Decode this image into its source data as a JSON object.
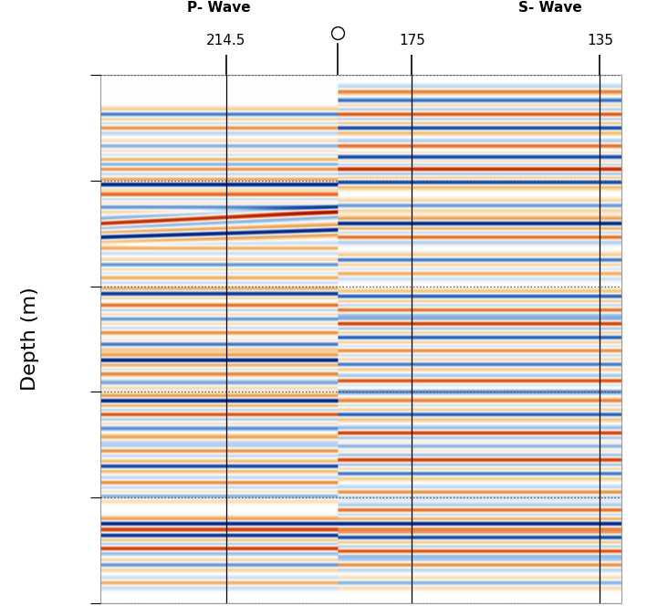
{
  "chart_data": {
    "type": "seismic",
    "ylabel": "Depth (m)",
    "xlim": [
      241.3,
      130.5
    ],
    "xticks": [
      214.5,
      175,
      135
    ],
    "ylim": [
      100,
      0
    ],
    "yticks": [
      0,
      20,
      40,
      60,
      80,
      100
    ],
    "tick_labels": "x",
    "grid": true,
    "boundary": 190.8,
    "panels": [
      {
        "name": "P- Wave",
        "xrange": [
          241.3,
          190.8
        ],
        "events": [
          {
            "depth": [
              7.4,
              7.4
            ],
            "amplitude": -0.6
          },
          {
            "depth": [
              10,
              10
            ],
            "amplitude": 0.5
          },
          {
            "depth": [
              13.4,
              13.4
            ],
            "amplitude": -0.4
          },
          {
            "depth": [
              16,
              16
            ],
            "amplitude": 0.4
          },
          {
            "depth": [
              17.8,
              17.8
            ],
            "amplitude": 0.5
          },
          {
            "depth": [
              20.7,
              20.7
            ],
            "amplitude": -1.0
          },
          {
            "depth": [
              22.6,
              22.6
            ],
            "amplitude": 0.6
          },
          {
            "depth": [
              25,
              25
            ],
            "amplitude": -0.5
          },
          {
            "depth": [
              28.1,
              25.9
            ],
            "amplitude": 0.9
          },
          {
            "depth": [
              30.7,
              29.3
            ],
            "amplitude": -1.0
          },
          {
            "depth": [
              32.8,
              32.8
            ],
            "amplitude": 0.4
          },
          {
            "depth": [
              35.9,
              35.9
            ],
            "amplitude": -0.5
          },
          {
            "depth": [
              38.4,
              38.4
            ],
            "amplitude": 0.4
          },
          {
            "depth": [
              41.4,
              41.4
            ],
            "amplitude": -0.9
          },
          {
            "depth": [
              43.6,
              43.6
            ],
            "amplitude": 0.6
          },
          {
            "depth": [
              46.2,
              46.2
            ],
            "amplitude": -0.5
          },
          {
            "depth": [
              48.8,
              48.8
            ],
            "amplitude": 0.5
          },
          {
            "depth": [
              51,
              51
            ],
            "amplitude": -0.6
          },
          {
            "depth": [
              54,
              54
            ],
            "amplitude": -1.0
          },
          {
            "depth": [
              56.6,
              56.6
            ],
            "amplitude": 0.5
          },
          {
            "depth": [
              58.3,
              58.3
            ],
            "amplitude": -0.4
          },
          {
            "depth": [
              61.7,
              61.7
            ],
            "amplitude": -1.0
          },
          {
            "depth": [
              64.3,
              64.3
            ],
            "amplitude": 0.7
          },
          {
            "depth": [
              66.9,
              66.9
            ],
            "amplitude": -0.5
          },
          {
            "depth": [
              68.6,
              68.6
            ],
            "amplitude": 0.4
          },
          {
            "depth": [
              71.2,
              71.2
            ],
            "amplitude": 0.5
          },
          {
            "depth": [
              74.1,
              74.1
            ],
            "amplitude": -0.8
          },
          {
            "depth": [
              77.2,
              77.2
            ],
            "amplitude": 0.5
          },
          {
            "depth": [
              79.8,
              79.8
            ],
            "amplitude": -0.4
          },
          {
            "depth": [
              85,
              85
            ],
            "amplitude": -1.0
          },
          {
            "depth": [
              87.2,
              87.2
            ],
            "amplitude": -0.9
          },
          {
            "depth": [
              89.7,
              89.7
            ],
            "amplitude": 0.8
          },
          {
            "depth": [
              92.8,
              92.8
            ],
            "amplitude": -0.5
          },
          {
            "depth": [
              96.2,
              96.2
            ],
            "amplitude": 0.4
          }
        ]
      },
      {
        "name": "S- Wave",
        "xrange": [
          190.8,
          130.5
        ],
        "events": [
          {
            "depth": [
              3.1,
              3.1
            ],
            "amplitude": 0.5
          },
          {
            "depth": [
              4.8,
              4.8
            ],
            "amplitude": -0.6
          },
          {
            "depth": [
              7.4,
              7.4
            ],
            "amplitude": 0.7
          },
          {
            "depth": [
              10,
              10
            ],
            "amplitude": -0.8
          },
          {
            "depth": [
              13.4,
              13.4
            ],
            "amplitude": 0.6
          },
          {
            "depth": [
              15.5,
              15.5
            ],
            "amplitude": -0.8
          },
          {
            "depth": [
              17.8,
              17.8
            ],
            "amplitude": 0.9
          },
          {
            "depth": [
              20.3,
              20.3
            ],
            "amplitude": -0.8
          },
          {
            "depth": [
              24.7,
              24.7
            ],
            "amplitude": -0.5
          },
          {
            "depth": [
              28.1,
              28.1
            ],
            "amplitude": -1.0
          },
          {
            "depth": [
              30.7,
              30.7
            ],
            "amplitude": 0.6
          },
          {
            "depth": [
              35,
              35
            ],
            "amplitude": -0.6
          },
          {
            "depth": [
              37.6,
              37.6
            ],
            "amplitude": 0.4
          },
          {
            "depth": [
              41.9,
              41.9
            ],
            "amplitude": -0.7
          },
          {
            "depth": [
              44.5,
              44.5
            ],
            "amplitude": 0.6
          },
          {
            "depth": [
              47.1,
              47.1
            ],
            "amplitude": 0.8
          },
          {
            "depth": [
              49.7,
              49.7
            ],
            "amplitude": -0.7
          },
          {
            "depth": [
              52.2,
              52.2
            ],
            "amplitude": 0.5
          },
          {
            "depth": [
              54.8,
              54.8
            ],
            "amplitude": -0.6
          },
          {
            "depth": [
              57.9,
              57.9
            ],
            "amplitude": 0.7
          },
          {
            "depth": [
              60,
              60
            ],
            "amplitude": -0.5
          },
          {
            "depth": [
              61.7,
              61.7
            ],
            "amplitude": 0.5
          },
          {
            "depth": [
              64.3,
              64.3
            ],
            "amplitude": -0.7
          },
          {
            "depth": [
              67.8,
              67.8
            ],
            "amplitude": 0.8
          },
          {
            "depth": [
              70.3,
              70.3
            ],
            "amplitude": -0.4
          },
          {
            "depth": [
              72.9,
              72.9
            ],
            "amplitude": 0.8
          },
          {
            "depth": [
              75.5,
              75.5
            ],
            "amplitude": -0.6
          },
          {
            "depth": [
              79,
              79
            ],
            "amplitude": 0.5
          },
          {
            "depth": [
              82.4,
              82.4
            ],
            "amplitude": 0.6
          },
          {
            "depth": [
              85,
              85
            ],
            "amplitude": -1.0
          },
          {
            "depth": [
              87.6,
              87.6
            ],
            "amplitude": -0.8
          },
          {
            "depth": [
              90.2,
              90.2
            ],
            "amplitude": 0.7
          },
          {
            "depth": [
              92.8,
              92.8
            ],
            "amplitude": 0.5
          },
          {
            "depth": [
              96.2,
              96.2
            ],
            "amplitude": -0.4
          }
        ]
      }
    ]
  }
}
